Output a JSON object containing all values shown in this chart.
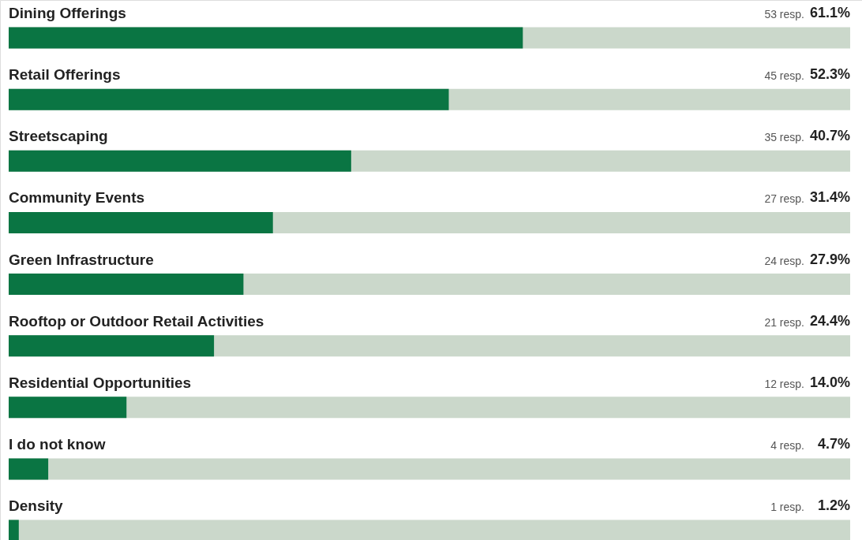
{
  "chart_data": {
    "type": "bar",
    "orientation": "horizontal",
    "categories": [
      "Dining Offerings",
      "Retail Offerings",
      "Streetscaping",
      "Community Events",
      "Green Infrastructure",
      "Rooftop or Outdoor Retail Activities",
      "Residential Opportunities",
      "I do not know",
      "Density"
    ],
    "values": [
      61.1,
      52.3,
      40.7,
      31.4,
      27.9,
      24.4,
      14.0,
      4.7,
      1.2
    ],
    "value_labels": [
      "61.1%",
      "52.3%",
      "40.7%",
      "31.4%",
      "27.9%",
      "24.4%",
      "14.0%",
      "4.7%",
      "1.2%"
    ],
    "color": "#0a7543",
    "xlim": [
      0,
      100
    ],
    "annotations": [
      "53 resp.",
      "45 resp.",
      "35 resp.",
      "27 resp.",
      "24 resp.",
      "21 resp.",
      "12 resp.",
      "4 resp.",
      "1 resp."
    ]
  }
}
